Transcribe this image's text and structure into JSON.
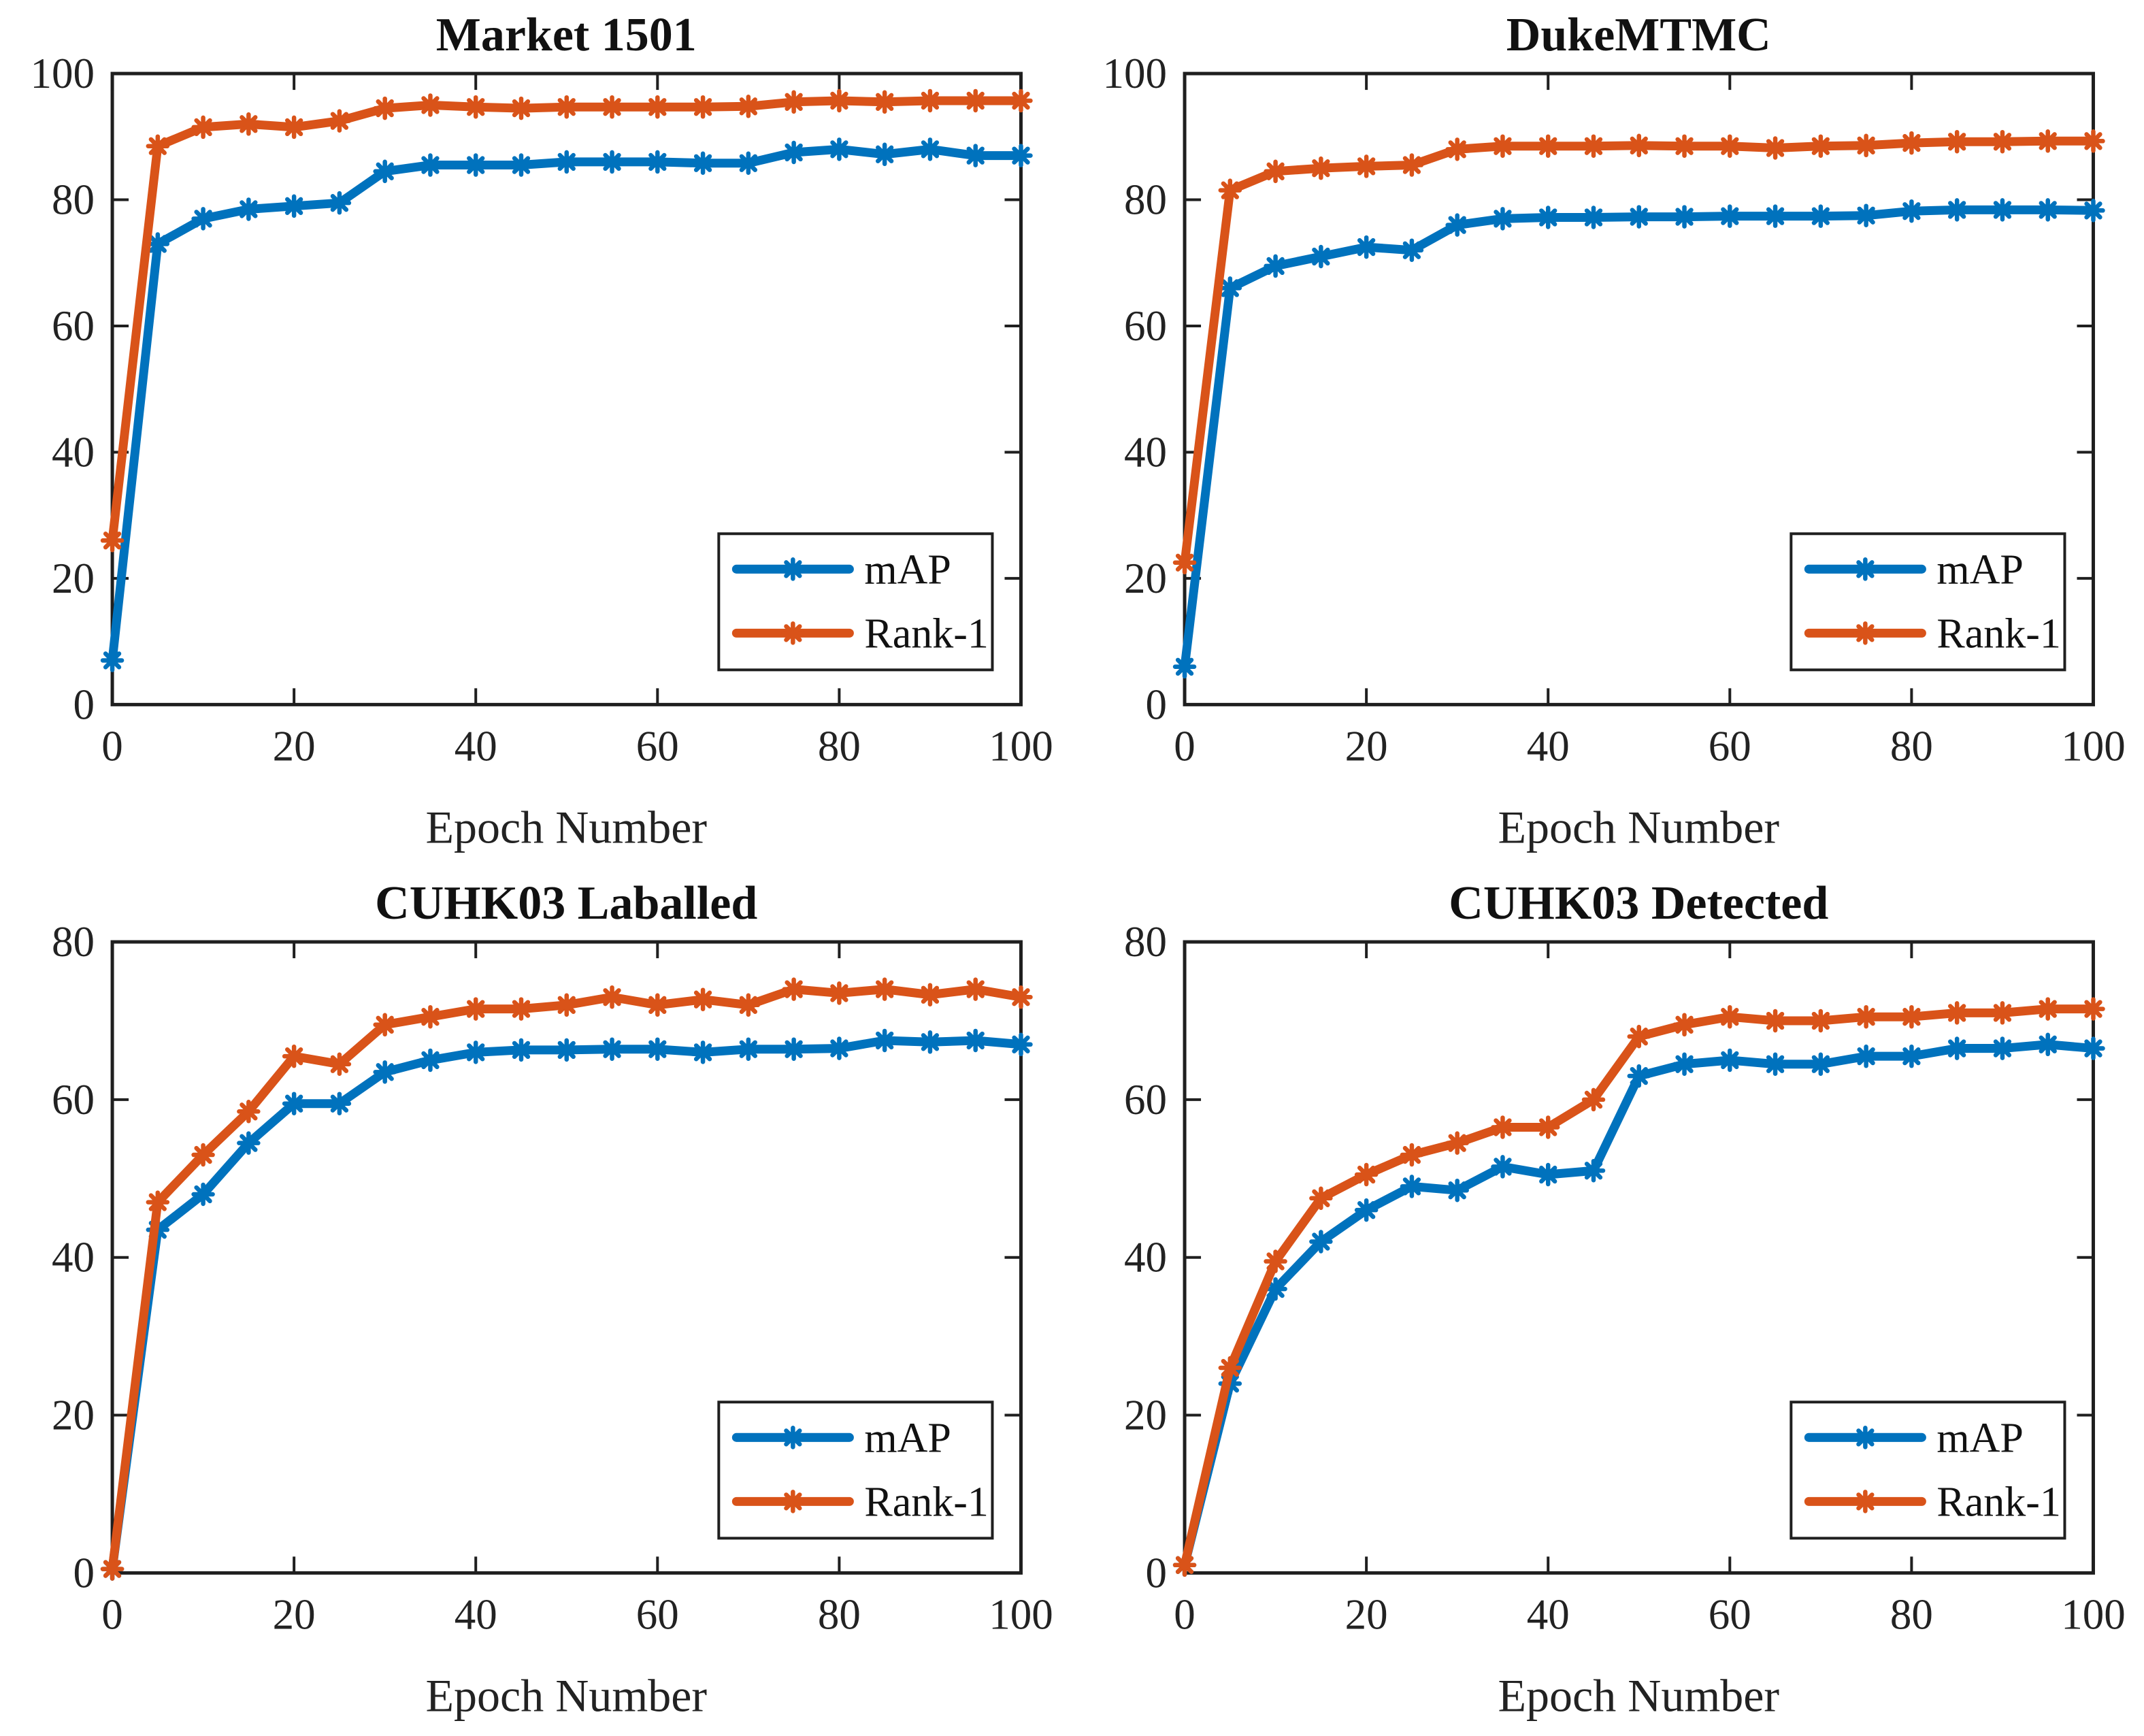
{
  "figure_title": "",
  "accent_colors": {
    "map_blue": "#0072BD",
    "rank1_orange": "#D95319",
    "axis": "#1f1f1f",
    "background": "#ffffff"
  },
  "legend": {
    "entries": [
      "mAP",
      "Rank-1"
    ],
    "position": "southeast"
  },
  "chart_data": [
    {
      "type": "line",
      "title": "Market 1501",
      "xlabel": "Epoch Number",
      "ylabel": "",
      "xlim": [
        0,
        100
      ],
      "ylim": [
        0,
        100
      ],
      "xticks": [
        0,
        20,
        40,
        60,
        80,
        100
      ],
      "yticks": [
        0,
        20,
        40,
        60,
        80,
        100
      ],
      "grid": false,
      "legend_position": "southeast",
      "x": [
        0,
        5,
        10,
        15,
        20,
        25,
        30,
        35,
        40,
        45,
        50,
        55,
        60,
        65,
        70,
        75,
        80,
        85,
        90,
        95,
        100
      ],
      "series": [
        {
          "name": "mAP",
          "color": "#0072BD",
          "marker": "asterisk",
          "values": [
            7,
            73,
            77,
            78.5,
            79,
            79.5,
            84.5,
            85.5,
            85.5,
            85.5,
            86,
            86,
            86,
            85.8,
            85.8,
            87.5,
            88,
            87.2,
            88,
            87,
            87
          ]
        },
        {
          "name": "Rank-1",
          "color": "#D95319",
          "marker": "asterisk",
          "values": [
            26,
            88.5,
            91.5,
            92,
            91.5,
            92.5,
            94.5,
            95,
            94.7,
            94.5,
            94.7,
            94.7,
            94.7,
            94.7,
            94.8,
            95.5,
            95.7,
            95.5,
            95.7,
            95.7,
            95.7
          ]
        }
      ]
    },
    {
      "type": "line",
      "title": "DukeMTMC",
      "xlabel": "Epoch Number",
      "ylabel": "",
      "xlim": [
        0,
        100
      ],
      "ylim": [
        0,
        100
      ],
      "xticks": [
        0,
        20,
        40,
        60,
        80,
        100
      ],
      "yticks": [
        0,
        20,
        40,
        60,
        80,
        100
      ],
      "grid": false,
      "legend_position": "southeast",
      "x": [
        0,
        5,
        10,
        15,
        20,
        25,
        30,
        35,
        40,
        45,
        50,
        55,
        60,
        65,
        70,
        75,
        80,
        85,
        90,
        95,
        100
      ],
      "series": [
        {
          "name": "mAP",
          "color": "#0072BD",
          "marker": "asterisk",
          "values": [
            6,
            66,
            69.5,
            71,
            72.5,
            72,
            76,
            77,
            77.2,
            77.2,
            77.3,
            77.3,
            77.4,
            77.4,
            77.4,
            77.5,
            78.2,
            78.4,
            78.4,
            78.4,
            78.3
          ]
        },
        {
          "name": "Rank-1",
          "color": "#D95319",
          "marker": "asterisk",
          "values": [
            22.5,
            81.5,
            84.5,
            85,
            85.3,
            85.5,
            88,
            88.5,
            88.5,
            88.5,
            88.6,
            88.5,
            88.5,
            88.2,
            88.5,
            88.6,
            89,
            89.2,
            89.2,
            89.3,
            89.3
          ]
        }
      ]
    },
    {
      "type": "line",
      "title": "CUHK03 Laballed",
      "xlabel": "Epoch Number",
      "ylabel": "",
      "xlim": [
        0,
        100
      ],
      "ylim": [
        0,
        80
      ],
      "xticks": [
        0,
        20,
        40,
        60,
        80,
        100
      ],
      "yticks": [
        0,
        20,
        40,
        60,
        80
      ],
      "grid": false,
      "legend_position": "southeast",
      "x": [
        0,
        5,
        10,
        15,
        20,
        25,
        30,
        35,
        40,
        45,
        50,
        55,
        60,
        65,
        70,
        75,
        80,
        85,
        90,
        95,
        100
      ],
      "series": [
        {
          "name": "mAP",
          "color": "#0072BD",
          "marker": "asterisk",
          "values": [
            0.5,
            43.5,
            48,
            54.5,
            59.5,
            59.5,
            63.5,
            65,
            66,
            66.3,
            66.3,
            66.4,
            66.4,
            66,
            66.4,
            66.4,
            66.5,
            67.5,
            67.3,
            67.5,
            67
          ]
        },
        {
          "name": "Rank-1",
          "color": "#D95319",
          "marker": "asterisk",
          "values": [
            0.5,
            47,
            53,
            58.5,
            65.5,
            64.5,
            69.5,
            70.5,
            71.5,
            71.5,
            72,
            73,
            72,
            72.7,
            72,
            74,
            73.5,
            74,
            73.3,
            74,
            73
          ]
        }
      ]
    },
    {
      "type": "line",
      "title": "CUHK03 Detected",
      "xlabel": "Epoch Number",
      "ylabel": "",
      "xlim": [
        0,
        100
      ],
      "ylim": [
        0,
        80
      ],
      "xticks": [
        0,
        20,
        40,
        60,
        80,
        100
      ],
      "yticks": [
        0,
        20,
        40,
        60,
        80
      ],
      "grid": false,
      "legend_position": "southeast",
      "x": [
        0,
        5,
        10,
        15,
        20,
        25,
        30,
        35,
        40,
        45,
        50,
        55,
        60,
        65,
        70,
        75,
        80,
        85,
        90,
        95,
        100
      ],
      "series": [
        {
          "name": "mAP",
          "color": "#0072BD",
          "marker": "asterisk",
          "values": [
            1,
            24,
            36,
            42,
            46,
            49,
            48.5,
            51.5,
            50.5,
            51,
            63,
            64.5,
            65,
            64.5,
            64.5,
            65.5,
            65.5,
            66.5,
            66.5,
            67,
            66.5
          ]
        },
        {
          "name": "Rank-1",
          "color": "#D95319",
          "marker": "asterisk",
          "values": [
            1,
            26,
            39.5,
            47.5,
            50.5,
            53,
            54.5,
            56.5,
            56.5,
            60,
            68,
            69.5,
            70.5,
            70,
            70,
            70.5,
            70.5,
            71,
            71,
            71.5,
            71.5
          ]
        }
      ]
    }
  ]
}
